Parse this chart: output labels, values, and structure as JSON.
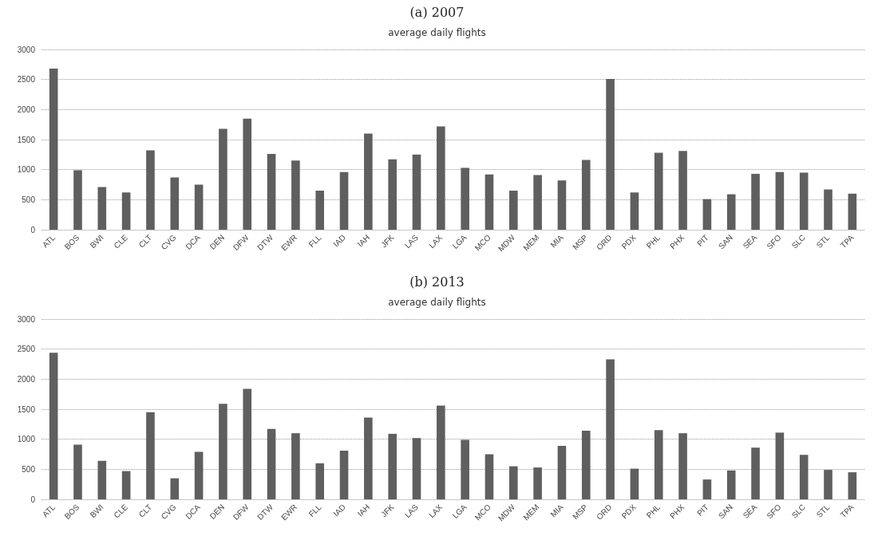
{
  "chart_data": [
    {
      "type": "bar",
      "title": "(a) 2007",
      "subtitle": "average daily flights",
      "categories": [
        "ATL",
        "BOS",
        "BWI",
        "CLE",
        "CLT",
        "CVG",
        "DCA",
        "DEN",
        "DFW",
        "DTW",
        "EWR",
        "FLL",
        "IAD",
        "IAH",
        "JFK",
        "LAS",
        "LAX",
        "LGA",
        "MCO",
        "MDW",
        "MEM",
        "MIA",
        "MSP",
        "ORD",
        "PDX",
        "PHL",
        "PHX",
        "PIT",
        "SAN",
        "SEA",
        "SFO",
        "SLC",
        "STL",
        "TPA"
      ],
      "values": [
        2680,
        990,
        710,
        620,
        1320,
        870,
        750,
        1680,
        1850,
        1260,
        1150,
        650,
        960,
        1600,
        1170,
        1250,
        1720,
        1030,
        920,
        650,
        910,
        820,
        1160,
        2510,
        620,
        1280,
        1310,
        510,
        590,
        930,
        960,
        950,
        670,
        600
      ],
      "color": "#5f5f5f",
      "ylim": [
        0,
        3000
      ],
      "yticks": [
        0,
        500,
        1000,
        1500,
        2000,
        2500,
        3000
      ],
      "grid": "y"
    },
    {
      "type": "bar",
      "title": "(b) 2013",
      "subtitle": "average daily flights",
      "categories": [
        "ATL",
        "BOS",
        "BWI",
        "CLE",
        "CLT",
        "CVG",
        "DCA",
        "DEN",
        "DFW",
        "DTW",
        "EWR",
        "FLL",
        "IAD",
        "IAH",
        "JFK",
        "LAS",
        "LAX",
        "LGA",
        "MCO",
        "MDW",
        "MEM",
        "MIA",
        "MSP",
        "ORD",
        "PDX",
        "PHL",
        "PHX",
        "PIT",
        "SAN",
        "SEA",
        "SFO",
        "SLC",
        "STL",
        "TPA"
      ],
      "values": [
        2440,
        910,
        640,
        470,
        1450,
        350,
        790,
        1590,
        1840,
        1170,
        1100,
        600,
        810,
        1360,
        1090,
        1020,
        1560,
        990,
        750,
        550,
        530,
        890,
        1140,
        2330,
        510,
        1150,
        1100,
        330,
        480,
        860,
        1110,
        740,
        490,
        450
      ],
      "color": "#5f5f5f",
      "ylim": [
        0,
        3000
      ],
      "yticks": [
        0,
        500,
        1000,
        1500,
        2000,
        2500,
        3000
      ],
      "grid": "y"
    }
  ]
}
